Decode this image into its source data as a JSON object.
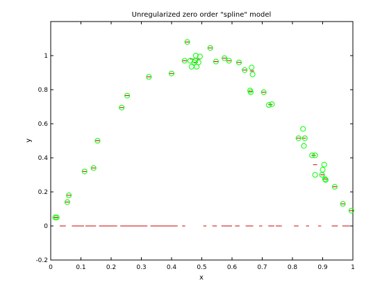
{
  "chart_data": {
    "type": "scatter",
    "title": "Unregularized zero order \"spline\" model",
    "xlabel": "x",
    "ylabel": "y",
    "xlim": [
      0,
      1
    ],
    "ylim": [
      -0.2,
      1.2
    ],
    "x_ticks": [
      0,
      0.1,
      0.2,
      0.3,
      0.4,
      0.5,
      0.6,
      0.7,
      0.8,
      0.9,
      1
    ],
    "x_tick_labels": [
      "0",
      "0.1",
      "0.2",
      "0.3",
      "0.4",
      "0.5",
      "0.6",
      "0.7",
      "0.8",
      "0.9",
      "1"
    ],
    "y_ticks": [
      -0.2,
      0,
      0.2,
      0.4,
      0.6,
      0.8,
      1
    ],
    "y_tick_labels": [
      "-0.2",
      "0",
      "0.2",
      "0.4",
      "0.6",
      "0.8",
      "1"
    ],
    "grid": false,
    "colors": {
      "points": "#00ff00",
      "model": "#cc0000"
    },
    "series": [
      {
        "kind": "markers",
        "marker": "circle",
        "points": [
          [
            0.015,
            0.05
          ],
          [
            0.02,
            0.05
          ],
          [
            0.055,
            0.14
          ],
          [
            0.06,
            0.18
          ],
          [
            0.112,
            0.32
          ],
          [
            0.142,
            0.34
          ],
          [
            0.155,
            0.5
          ],
          [
            0.235,
            0.695
          ],
          [
            0.253,
            0.765
          ],
          [
            0.325,
            0.875
          ],
          [
            0.4,
            0.895
          ],
          [
            0.443,
            0.97
          ],
          [
            0.452,
            1.08
          ],
          [
            0.462,
            0.97
          ],
          [
            0.466,
            0.935
          ],
          [
            0.475,
            0.96
          ],
          [
            0.478,
            0.97
          ],
          [
            0.48,
            1.0
          ],
          [
            0.483,
            0.935
          ],
          [
            0.489,
            0.96
          ],
          [
            0.494,
            0.995
          ],
          [
            0.528,
            1.045
          ],
          [
            0.547,
            0.965
          ],
          [
            0.575,
            0.985
          ],
          [
            0.59,
            0.97
          ],
          [
            0.623,
            0.96
          ],
          [
            0.642,
            0.915
          ],
          [
            0.66,
            0.795
          ],
          [
            0.662,
            0.785
          ],
          [
            0.665,
            0.93
          ],
          [
            0.668,
            0.89
          ],
          [
            0.705,
            0.785
          ],
          [
            0.722,
            0.71
          ],
          [
            0.732,
            0.715
          ],
          [
            0.82,
            0.515
          ],
          [
            0.835,
            0.57
          ],
          [
            0.838,
            0.47
          ],
          [
            0.841,
            0.515
          ],
          [
            0.865,
            0.415
          ],
          [
            0.875,
            0.415
          ],
          [
            0.875,
            0.3
          ],
          [
            0.898,
            0.3
          ],
          [
            0.9,
            0.33
          ],
          [
            0.905,
            0.36
          ],
          [
            0.908,
            0.275
          ],
          [
            0.91,
            0.27
          ],
          [
            0.94,
            0.23
          ],
          [
            0.967,
            0.13
          ],
          [
            0.995,
            0.09
          ]
        ]
      },
      {
        "kind": "model-dashes",
        "marker": "dash",
        "points": [
          [
            0.015,
            0.05
          ],
          [
            0.02,
            0.05
          ],
          [
            0.055,
            0.14
          ],
          [
            0.06,
            0.18
          ],
          [
            0.112,
            0.32
          ],
          [
            0.142,
            0.34
          ],
          [
            0.155,
            0.5
          ],
          [
            0.235,
            0.695
          ],
          [
            0.253,
            0.765
          ],
          [
            0.325,
            0.875
          ],
          [
            0.4,
            0.895
          ],
          [
            0.443,
            0.97
          ],
          [
            0.452,
            1.08
          ],
          [
            0.468,
            0.98
          ],
          [
            0.48,
            0.96
          ],
          [
            0.49,
            0.98
          ],
          [
            0.528,
            1.045
          ],
          [
            0.547,
            0.965
          ],
          [
            0.575,
            0.985
          ],
          [
            0.59,
            0.97
          ],
          [
            0.623,
            0.96
          ],
          [
            0.642,
            0.915
          ],
          [
            0.661,
            0.79
          ],
          [
            0.666,
            0.91
          ],
          [
            0.705,
            0.785
          ],
          [
            0.727,
            0.712
          ],
          [
            0.82,
            0.515
          ],
          [
            0.838,
            0.515
          ],
          [
            0.87,
            0.415
          ],
          [
            0.875,
            0.36
          ],
          [
            0.9,
            0.3
          ],
          [
            0.908,
            0.275
          ],
          [
            0.94,
            0.23
          ],
          [
            0.967,
            0.13
          ],
          [
            0.995,
            0.09
          ]
        ],
        "baseline_segments": [
          [
            0.03,
            0.05
          ],
          [
            0.07,
            0.11
          ],
          [
            0.115,
            0.15
          ],
          [
            0.16,
            0.22
          ],
          [
            0.23,
            0.32
          ],
          [
            0.33,
            0.42
          ],
          [
            0.435,
            0.445
          ],
          [
            0.505,
            0.515
          ],
          [
            0.535,
            0.55
          ],
          [
            0.565,
            0.6
          ],
          [
            0.61,
            0.625
          ],
          [
            0.645,
            0.67
          ],
          [
            0.69,
            0.7
          ],
          [
            0.72,
            0.74
          ],
          [
            0.745,
            0.765
          ],
          [
            0.805,
            0.82
          ],
          [
            0.845,
            0.855
          ],
          [
            0.885,
            0.895
          ],
          [
            0.93,
            0.95
          ],
          [
            0.965,
            0.99
          ]
        ]
      }
    ]
  }
}
